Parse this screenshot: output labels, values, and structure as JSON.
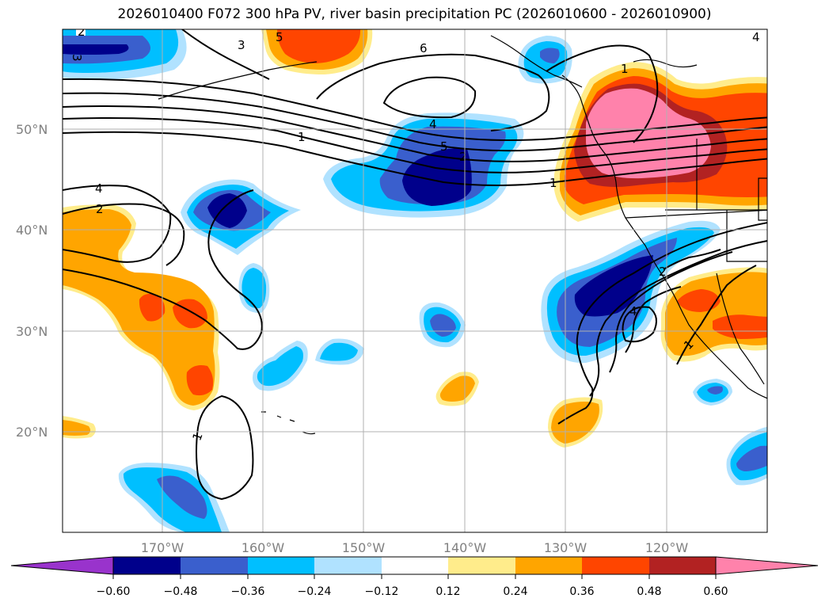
{
  "title": "2026010400 F072 300 hPa PV, river basin precipitation PC (2026010600 - 2026010900)",
  "map": {
    "lat_labels": [
      "50°N",
      "40°N",
      "30°N",
      "20°N"
    ],
    "lon_labels": [
      "170°W",
      "160°W",
      "150°W",
      "140°W",
      "130°W",
      "120°W"
    ],
    "pv_contour_labels": [
      "2",
      "3",
      "3",
      "5",
      "6",
      "4",
      "5",
      "2",
      "1",
      "1",
      "4",
      "2",
      "1",
      "2",
      "4",
      "1",
      "1",
      "4"
    ]
  },
  "colorbar": {
    "tick_labels": [
      "−0.60",
      "−0.48",
      "−0.36",
      "−0.24",
      "−0.12",
      "0.12",
      "0.24",
      "0.36",
      "0.48",
      "0.60"
    ],
    "colors": [
      "#9933cc",
      "#00008b",
      "#3a5fcd",
      "#00bfff",
      "#b0e2ff",
      "#ffffff",
      "#ffec8b",
      "#ffa500",
      "#ff4500",
      "#b22222",
      "#ff82ab"
    ]
  }
}
